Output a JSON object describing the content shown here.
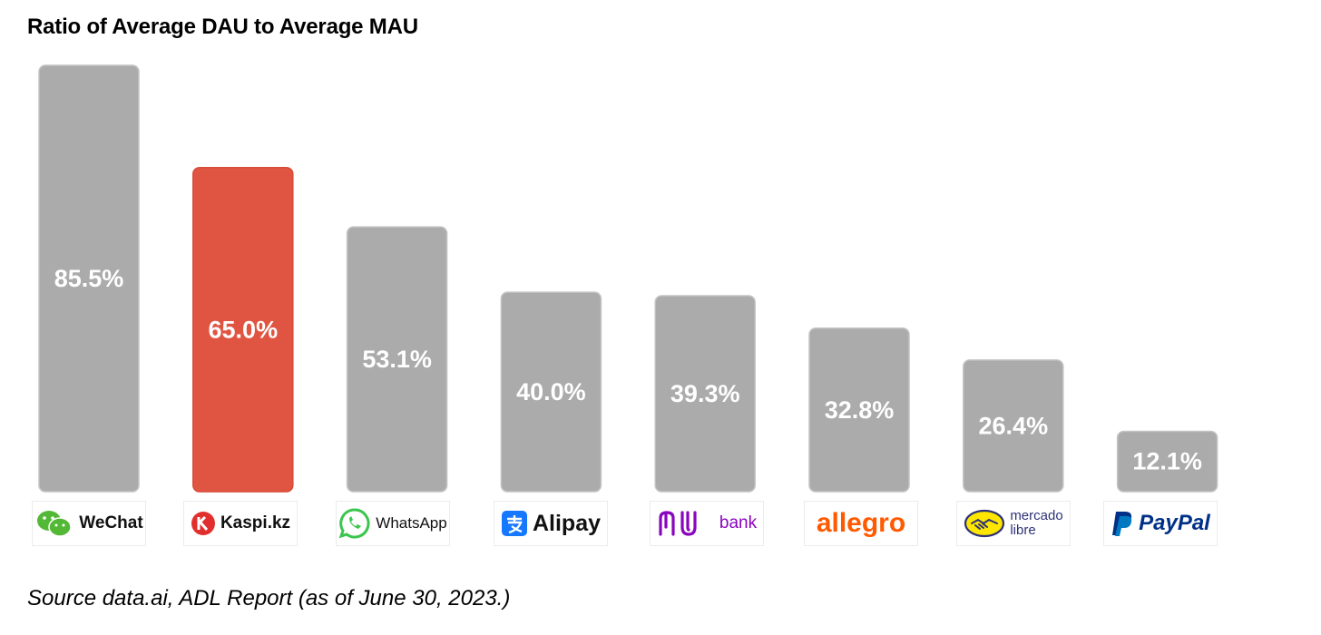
{
  "title": "Ratio of Average DAU to Average MAU",
  "source": "Source data.ai, ADL Report (as of June 30, 2023.)",
  "chart_data": {
    "type": "bar",
    "title": "Ratio of Average DAU to Average MAU",
    "categories": [
      "WeChat",
      "Kaspi.kz",
      "WhatsApp",
      "Alipay",
      "nubank",
      "allegro",
      "mercado libre",
      "PayPal"
    ],
    "values": [
      85.5,
      65.0,
      53.1,
      40.0,
      39.3,
      32.8,
      26.4,
      12.1
    ],
    "data_labels": [
      "85.5%",
      "65.0%",
      "53.1%",
      "40.0%",
      "39.3%",
      "32.8%",
      "26.4%",
      "12.1%"
    ],
    "unit": "%",
    "ylim": [
      0,
      85.5
    ],
    "grid": false,
    "legend": "none",
    "colors": {
      "default_bar": "#ababab",
      "highlight_bar": "#e05542",
      "label_text": "#ffffff"
    },
    "highlight": "Kaspi.kz"
  },
  "logos": [
    {
      "name": "wechat",
      "text": "WeChat",
      "icon": "wechat-icon",
      "color": "#53b836"
    },
    {
      "name": "kaspi",
      "text": "Kaspi.kz",
      "icon": "kaspi-icon",
      "color": "#e02f2c"
    },
    {
      "name": "whatsapp",
      "text": "WhatsApp",
      "icon": "whatsapp-icon",
      "color": "#3cc54e"
    },
    {
      "name": "alipay",
      "text": "Alipay",
      "icon": "alipay-icon",
      "color": "#1677ff"
    },
    {
      "name": "nubank",
      "text": "bank",
      "icon": "nu-icon",
      "color": "#8a05be"
    },
    {
      "name": "allegro",
      "text": "allegro",
      "icon": "",
      "color": "#ff5a00"
    },
    {
      "name": "mercadolibre",
      "text": "mercado",
      "text2": "libre",
      "icon": "handshake-icon",
      "color": "#2d3277"
    },
    {
      "name": "paypal",
      "text": "PayPal",
      "icon": "paypal-icon",
      "color": "#003087"
    }
  ]
}
